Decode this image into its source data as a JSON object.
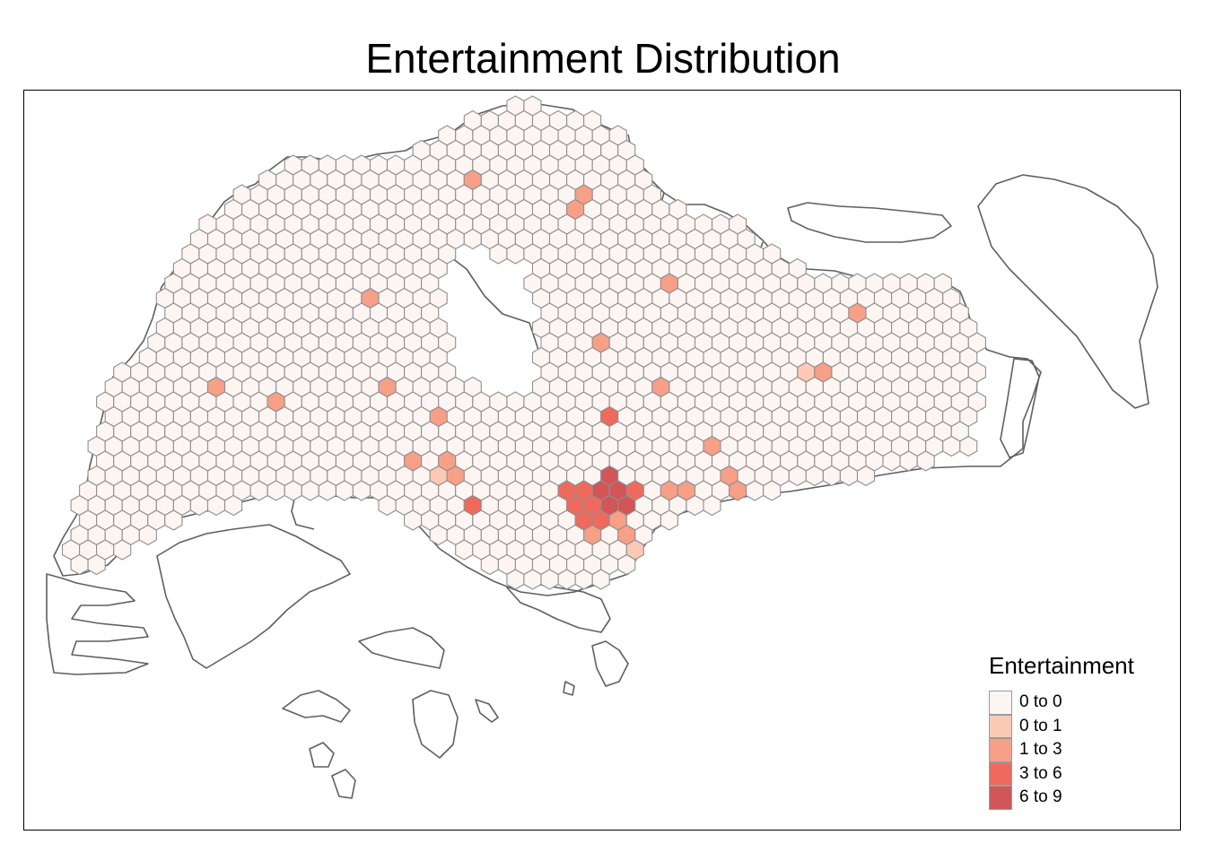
{
  "title": "Entertainment Distribution",
  "legend": {
    "title": "Entertainment",
    "position": "bottom-right",
    "classes": [
      {
        "label": "0 to 0",
        "color": "#fdf5f2"
      },
      {
        "label": "0 to 1",
        "color": "#fcc9b4"
      },
      {
        "label": "1 to 3",
        "color": "#f89f88"
      },
      {
        "label": "3 to 6",
        "color": "#ef6a5c"
      },
      {
        "label": "6 to 9",
        "color": "#d25558"
      }
    ]
  },
  "colors": {
    "hex_border": "#8f8f8f",
    "coastline": "#5f5f5f",
    "frame": "#000000"
  },
  "chart_data": {
    "type": "heatmap",
    "map_type": "hexagon choropleth",
    "variable": "Entertainment",
    "class_breaks": [
      0,
      0,
      1,
      3,
      6,
      9
    ]
  }
}
